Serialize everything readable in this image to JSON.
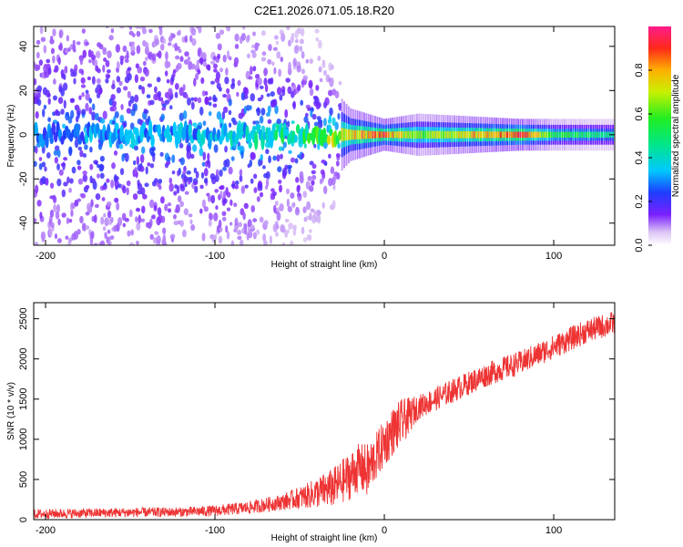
{
  "title": "C2E1.2026.071.05.18.R20",
  "chart_data": [
    {
      "type": "heatmap",
      "title": "C2E1.2026.071.05.18.R20",
      "xlabel": "Height of straight line (km)",
      "ylabel": "Frequency (Hz)",
      "xlim": [
        -207,
        136
      ],
      "ylim": [
        -50,
        49
      ],
      "xticks": [
        -200,
        -100,
        0,
        100
      ],
      "yticks": [
        -40,
        -20,
        0,
        20,
        40
      ],
      "colorbar": {
        "label": "Normalized spectral amplitude",
        "range": [
          0,
          1
        ],
        "ticks": [
          0.0,
          0.2,
          0.4,
          0.6,
          0.8
        ]
      },
      "profile": [
        {
          "x": -200,
          "amp": 0.25,
          "spread": 30
        },
        {
          "x": -100,
          "amp": 0.3,
          "spread": 25
        },
        {
          "x": -40,
          "amp": 0.45,
          "spread": 12
        },
        {
          "x": -20,
          "amp": 0.75,
          "spread": 5
        },
        {
          "x": 0,
          "amp": 0.85,
          "spread": 3
        },
        {
          "x": 20,
          "amp": 0.6,
          "spread": 4
        },
        {
          "x": 80,
          "amp": 0.9,
          "spread": 3
        },
        {
          "x": 100,
          "amp": 0.55,
          "spread": 3
        },
        {
          "x": 130,
          "amp": 0.45,
          "spread": 3
        }
      ]
    },
    {
      "type": "line",
      "xlabel": "Height of straight line (km)",
      "ylabel": "SNR (10 * v/v)",
      "xlim": [
        -207,
        136
      ],
      "ylim": [
        0,
        2700
      ],
      "xticks": [
        -200,
        -100,
        0,
        100
      ],
      "yticks": [
        0,
        500,
        1000,
        1500,
        2000,
        2500
      ],
      "color": "#ee3333",
      "series": [
        {
          "name": "SNR",
          "x": [
            -207,
            -180,
            -150,
            -120,
            -100,
            -80,
            -60,
            -45,
            -30,
            -20,
            -15,
            -10,
            -5,
            0,
            5,
            10,
            15,
            20,
            30,
            40,
            50,
            60,
            70,
            80,
            90,
            100,
            110,
            120,
            136
          ],
          "y": [
            70,
            80,
            90,
            95,
            110,
            150,
            220,
            300,
            400,
            550,
            650,
            600,
            780,
            950,
            1100,
            1200,
            1300,
            1400,
            1500,
            1600,
            1700,
            1800,
            1880,
            1950,
            2050,
            2150,
            2250,
            2350,
            2450
          ],
          "spread": [
            60,
            60,
            60,
            60,
            70,
            80,
            100,
            160,
            250,
            300,
            300,
            350,
            300,
            300,
            300,
            300,
            220,
            150,
            150,
            150,
            150,
            150,
            150,
            150,
            150,
            150,
            150,
            150,
            150
          ]
        }
      ]
    }
  ]
}
